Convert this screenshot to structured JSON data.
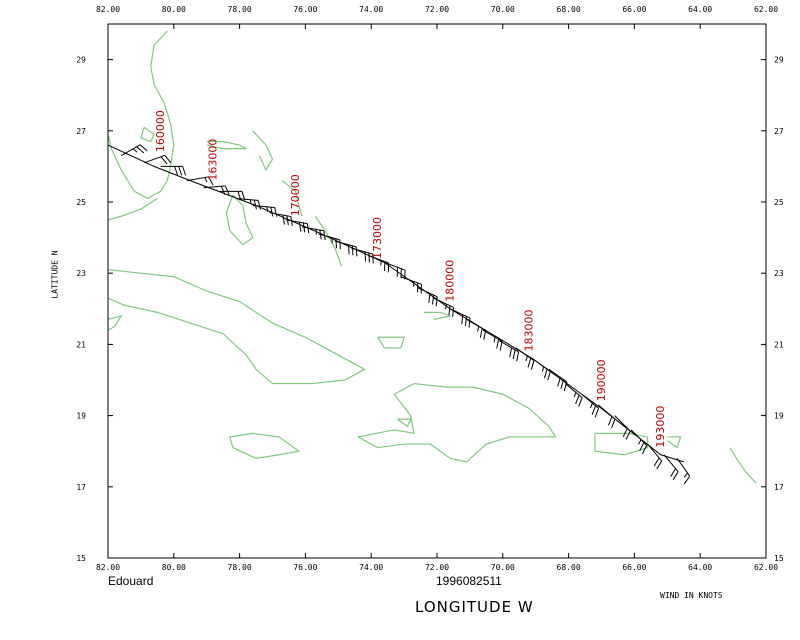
{
  "storm_name": "Edouard",
  "datetime_group": "1996082511",
  "x_axis_title": "LONGITUDE  W",
  "y_axis_title": "LATITUDE  N",
  "wind_units": "WIND IN KNOTS",
  "colors": {
    "coastline": "#7fc87f",
    "barb": "#000000",
    "time_label": "#c00000",
    "frame": "#000000"
  },
  "chart_data": {
    "type": "map",
    "xlim": [
      -82,
      -62
    ],
    "ylim": [
      15,
      30
    ],
    "x_tick_values": [
      -82,
      -80,
      -78,
      -76,
      -74,
      -72,
      -70,
      -68,
      -66,
      -64,
      -62
    ],
    "x_tick_labels": [
      "82.00",
      "80.00",
      "78.00",
      "76.00",
      "74.00",
      "72.00",
      "70.00",
      "68.00",
      "66.00",
      "64.00",
      "62.00"
    ],
    "y_tick_values": [
      15,
      17,
      19,
      21,
      23,
      25,
      27,
      29
    ],
    "y_tick_labels": [
      "15",
      "17",
      "19",
      "21",
      "23",
      "25",
      "27",
      "29"
    ],
    "track": [
      [
        -82.5,
        26.6
      ],
      [
        -80.6,
        26.0
      ],
      [
        -79.5,
        25.6
      ],
      [
        -77.5,
        24.9
      ],
      [
        -75.5,
        24.1
      ],
      [
        -73.6,
        23.3
      ],
      [
        -71.6,
        22.0
      ],
      [
        -69.1,
        20.6
      ],
      [
        -67.0,
        19.2
      ],
      [
        -65.2,
        17.9
      ],
      [
        -64.5,
        17.7
      ]
    ],
    "time_labels": [
      {
        "text": "160000",
        "lon": -80.3,
        "lat": 26.4
      },
      {
        "text": "163000",
        "lon": -78.7,
        "lat": 25.6
      },
      {
        "text": "170000",
        "lon": -76.2,
        "lat": 24.6
      },
      {
        "text": "173000",
        "lon": -73.7,
        "lat": 23.4
      },
      {
        "text": "180000",
        "lon": -71.5,
        "lat": 22.2
      },
      {
        "text": "183000",
        "lon": -69.1,
        "lat": 20.8
      },
      {
        "text": "190000",
        "lon": -66.9,
        "lat": 19.4
      },
      {
        "text": "193000",
        "lon": -65.1,
        "lat": 18.1
      }
    ],
    "barbs": [
      {
        "lon": -81.6,
        "lat": 26.3,
        "dir": 60,
        "speed": 25
      },
      {
        "lon": -80.9,
        "lat": 26.1,
        "dir": 70,
        "speed": 20
      },
      {
        "lon": -80.4,
        "lat": 26.0,
        "dir": 90,
        "speed": 30
      },
      {
        "lon": -79.6,
        "lat": 25.6,
        "dir": 80,
        "speed": 15
      },
      {
        "lon": -79.1,
        "lat": 25.4,
        "dir": 85,
        "speed": 20
      },
      {
        "lon": -78.6,
        "lat": 25.3,
        "dir": 90,
        "speed": 20
      },
      {
        "lon": -78.1,
        "lat": 25.1,
        "dir": 95,
        "speed": 25
      },
      {
        "lon": -77.6,
        "lat": 24.9,
        "dir": 95,
        "speed": 25
      },
      {
        "lon": -77.1,
        "lat": 24.7,
        "dir": 100,
        "speed": 30
      },
      {
        "lon": -76.6,
        "lat": 24.5,
        "dir": 100,
        "speed": 30
      },
      {
        "lon": -76.1,
        "lat": 24.3,
        "dir": 100,
        "speed": 25
      },
      {
        "lon": -75.6,
        "lat": 24.1,
        "dir": 105,
        "speed": 25
      },
      {
        "lon": -75.1,
        "lat": 23.9,
        "dir": 105,
        "speed": 30
      },
      {
        "lon": -74.6,
        "lat": 23.7,
        "dir": 105,
        "speed": 30
      },
      {
        "lon": -74.1,
        "lat": 23.5,
        "dir": 110,
        "speed": 25
      },
      {
        "lon": -73.6,
        "lat": 23.3,
        "dir": 110,
        "speed": 30
      },
      {
        "lon": -73.1,
        "lat": 22.9,
        "dir": 110,
        "speed": 25
      },
      {
        "lon": -72.6,
        "lat": 22.6,
        "dir": 115,
        "speed": 30
      },
      {
        "lon": -72.1,
        "lat": 22.3,
        "dir": 115,
        "speed": 25
      },
      {
        "lon": -71.6,
        "lat": 22.0,
        "dir": 115,
        "speed": 30
      },
      {
        "lon": -71.1,
        "lat": 21.7,
        "dir": 120,
        "speed": 25
      },
      {
        "lon": -70.6,
        "lat": 21.4,
        "dir": 120,
        "speed": 25
      },
      {
        "lon": -70.1,
        "lat": 21.1,
        "dir": 120,
        "speed": 30
      },
      {
        "lon": -69.6,
        "lat": 20.9,
        "dir": 125,
        "speed": 25
      },
      {
        "lon": -69.1,
        "lat": 20.6,
        "dir": 125,
        "speed": 25
      },
      {
        "lon": -68.6,
        "lat": 20.3,
        "dir": 125,
        "speed": 30
      },
      {
        "lon": -68.1,
        "lat": 19.9,
        "dir": 130,
        "speed": 25
      },
      {
        "lon": -67.6,
        "lat": 19.6,
        "dir": 130,
        "speed": 25
      },
      {
        "lon": -67.1,
        "lat": 19.3,
        "dir": 130,
        "speed": 20
      },
      {
        "lon": -66.6,
        "lat": 19.0,
        "dir": 135,
        "speed": 20
      },
      {
        "lon": -66.1,
        "lat": 18.6,
        "dir": 135,
        "speed": 25
      },
      {
        "lon": -65.6,
        "lat": 18.2,
        "dir": 140,
        "speed": 20
      },
      {
        "lon": -65.1,
        "lat": 17.9,
        "dir": 140,
        "speed": 20
      },
      {
        "lon": -64.7,
        "lat": 17.8,
        "dir": 145,
        "speed": 15
      }
    ],
    "coastlines": [
      {
        "name": "florida-peninsula",
        "points": [
          [
            -80.2,
            29.8
          ],
          [
            -80.6,
            29.4
          ],
          [
            -80.7,
            28.8
          ],
          [
            -80.6,
            28.3
          ],
          [
            -80.3,
            27.8
          ],
          [
            -80.1,
            27.2
          ],
          [
            -80.0,
            26.6
          ],
          [
            -80.1,
            26.0
          ],
          [
            -80.2,
            25.6
          ],
          [
            -80.4,
            25.3
          ],
          [
            -80.8,
            25.1
          ],
          [
            -81.2,
            25.3
          ],
          [
            -81.6,
            25.9
          ],
          [
            -81.9,
            26.5
          ],
          [
            -82.0,
            26.9
          ]
        ]
      },
      {
        "name": "florida-keys",
        "points": [
          [
            -80.5,
            25.1
          ],
          [
            -81.0,
            24.8
          ],
          [
            -81.6,
            24.6
          ],
          [
            -82.0,
            24.5
          ]
        ]
      },
      {
        "name": "lake-okeechobee",
        "points": [
          [
            -80.9,
            27.1
          ],
          [
            -80.6,
            26.9
          ],
          [
            -80.7,
            26.7
          ],
          [
            -81.0,
            26.8
          ],
          [
            -80.9,
            27.1
          ]
        ]
      },
      {
        "name": "grand-bahama",
        "points": [
          [
            -79.0,
            26.7
          ],
          [
            -78.5,
            26.7
          ],
          [
            -78.0,
            26.6
          ],
          [
            -77.8,
            26.5
          ],
          [
            -78.5,
            26.5
          ],
          [
            -79.0,
            26.6
          ]
        ]
      },
      {
        "name": "abaco",
        "points": [
          [
            -77.6,
            27.0
          ],
          [
            -77.2,
            26.6
          ],
          [
            -77.0,
            26.2
          ],
          [
            -77.2,
            25.9
          ],
          [
            -77.4,
            26.3
          ]
        ]
      },
      {
        "name": "andros",
        "points": [
          [
            -78.2,
            25.2
          ],
          [
            -77.9,
            24.9
          ],
          [
            -77.8,
            24.4
          ],
          [
            -77.6,
            24.0
          ],
          [
            -77.9,
            23.8
          ],
          [
            -78.3,
            24.2
          ],
          [
            -78.4,
            24.7
          ],
          [
            -78.2,
            25.2
          ]
        ]
      },
      {
        "name": "eleuthera",
        "points": [
          [
            -76.7,
            25.6
          ],
          [
            -76.3,
            25.3
          ],
          [
            -76.2,
            24.9
          ],
          [
            -76.1,
            24.6
          ]
        ]
      },
      {
        "name": "cat-long-islands",
        "points": [
          [
            -75.7,
            24.6
          ],
          [
            -75.4,
            24.2
          ],
          [
            -75.1,
            23.7
          ],
          [
            -74.9,
            23.2
          ]
        ]
      },
      {
        "name": "cuba",
        "points": [
          [
            -82.0,
            23.1
          ],
          [
            -81.0,
            23.0
          ],
          [
            -80.0,
            22.9
          ],
          [
            -79.0,
            22.5
          ],
          [
            -78.0,
            22.2
          ],
          [
            -77.0,
            21.6
          ],
          [
            -76.0,
            21.2
          ],
          [
            -75.0,
            20.7
          ],
          [
            -74.2,
            20.3
          ],
          [
            -74.8,
            20.0
          ],
          [
            -75.8,
            19.9
          ],
          [
            -77.0,
            19.9
          ],
          [
            -77.5,
            20.3
          ],
          [
            -77.8,
            20.7
          ],
          [
            -78.5,
            21.3
          ],
          [
            -79.5,
            21.6
          ],
          [
            -80.5,
            21.9
          ],
          [
            -81.5,
            22.1
          ],
          [
            -82.0,
            22.3
          ]
        ]
      },
      {
        "name": "isla-de-la-juventud",
        "points": [
          [
            -82.0,
            21.7
          ],
          [
            -81.6,
            21.8
          ],
          [
            -81.8,
            21.5
          ],
          [
            -82.0,
            21.4
          ]
        ]
      },
      {
        "name": "jamaica",
        "points": [
          [
            -78.3,
            18.4
          ],
          [
            -77.6,
            18.5
          ],
          [
            -76.8,
            18.4
          ],
          [
            -76.2,
            18.0
          ],
          [
            -76.8,
            17.9
          ],
          [
            -77.5,
            17.8
          ],
          [
            -78.2,
            18.1
          ],
          [
            -78.3,
            18.4
          ]
        ]
      },
      {
        "name": "hispaniola",
        "points": [
          [
            -74.4,
            18.4
          ],
          [
            -73.3,
            18.6
          ],
          [
            -72.7,
            18.5
          ],
          [
            -72.8,
            19.0
          ],
          [
            -73.3,
            19.6
          ],
          [
            -72.7,
            19.9
          ],
          [
            -71.7,
            19.8
          ],
          [
            -70.9,
            19.8
          ],
          [
            -70.0,
            19.6
          ],
          [
            -69.2,
            19.2
          ],
          [
            -68.6,
            18.7
          ],
          [
            -68.4,
            18.4
          ],
          [
            -69.0,
            18.4
          ],
          [
            -69.8,
            18.4
          ],
          [
            -70.5,
            18.2
          ],
          [
            -71.1,
            17.7
          ],
          [
            -71.6,
            17.8
          ],
          [
            -72.2,
            18.2
          ],
          [
            -73.0,
            18.2
          ],
          [
            -73.8,
            18.1
          ],
          [
            -74.4,
            18.4
          ]
        ]
      },
      {
        "name": "gonave",
        "points": [
          [
            -73.2,
            18.9
          ],
          [
            -72.8,
            18.9
          ],
          [
            -72.9,
            18.7
          ],
          [
            -73.2,
            18.9
          ]
        ]
      },
      {
        "name": "turks-caicos",
        "points": [
          [
            -72.4,
            21.9
          ],
          [
            -71.9,
            21.9
          ],
          [
            -71.6,
            21.8
          ],
          [
            -72.1,
            21.7
          ]
        ]
      },
      {
        "name": "inagua",
        "points": [
          [
            -73.8,
            21.2
          ],
          [
            -73.0,
            21.2
          ],
          [
            -73.1,
            20.9
          ],
          [
            -73.6,
            20.9
          ],
          [
            -73.8,
            21.2
          ]
        ]
      },
      {
        "name": "puerto-rico",
        "points": [
          [
            -67.2,
            18.5
          ],
          [
            -66.2,
            18.5
          ],
          [
            -65.6,
            18.4
          ],
          [
            -65.6,
            18.1
          ],
          [
            -66.3,
            17.9
          ],
          [
            -67.2,
            18.0
          ],
          [
            -67.2,
            18.5
          ]
        ]
      },
      {
        "name": "virgin-islands",
        "points": [
          [
            -65.0,
            18.4
          ],
          [
            -64.6,
            18.4
          ],
          [
            -64.7,
            18.1
          ],
          [
            -65.0,
            18.3
          ]
        ]
      },
      {
        "name": "lesser-antilles-north",
        "points": [
          [
            -63.1,
            18.1
          ],
          [
            -62.9,
            17.8
          ],
          [
            -62.6,
            17.4
          ],
          [
            -62.3,
            17.1
          ]
        ]
      },
      {
        "name": "antigua-guadeloupe",
        "points": [
          [
            -61.9,
            17.1
          ],
          [
            -61.7,
            16.9
          ],
          [
            -61.6,
            16.4
          ],
          [
            -61.5,
            16.0
          ]
        ]
      }
    ]
  }
}
